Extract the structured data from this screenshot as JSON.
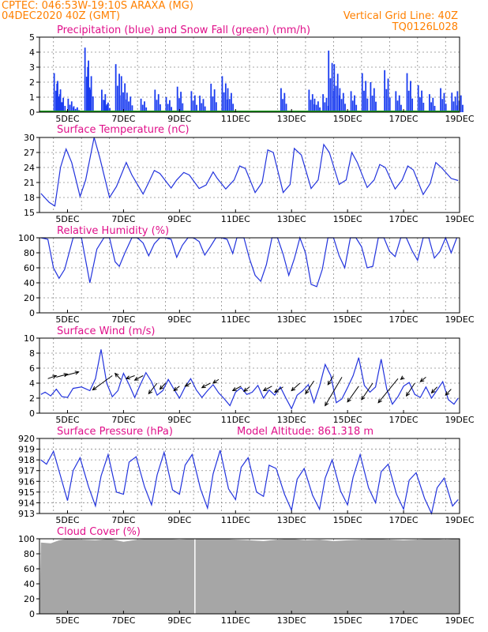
{
  "header": {
    "line1_left": "CPTEC:   046:53W-19:10S   ARAXA (MG)",
    "line2_left": "04DEC2020 40Z (GMT)",
    "line1_right": "Vertical Grid Line: 40Z",
    "line2_right": "TQ0126L028",
    "color": "#ff8000"
  },
  "colors": {
    "title": "#e0108a",
    "line": "#2233dd",
    "precip": "#1a3cf0",
    "snow": "#1a9a1a",
    "cloud": "#a6a6a6"
  },
  "x_ticks": [
    "5DEC",
    "7DEC",
    "9DEC",
    "11DEC",
    "13DEC",
    "15DEC",
    "17DEC",
    "19DEC"
  ],
  "chart_data": [
    {
      "type": "bar",
      "title": "Precipitation (blue) and Snow Fall (green) (mm/h)",
      "ylim": [
        0,
        5
      ],
      "yticks": [
        "0",
        "1",
        "2",
        "3",
        "4",
        "5"
      ],
      "snow_values": "all zero",
      "series": [
        {
          "name": "Precipitation",
          "x_day": [
            4.5,
            4.6,
            4.7,
            5.0,
            5.2,
            5.6,
            5.7,
            6.2,
            6.3,
            6.7,
            6.9,
            7.1,
            7.6,
            8.1,
            8.5,
            8.9,
            9.4,
            9.7,
            10.1,
            10.5,
            10.7,
            12.6,
            13.6,
            13.8,
            14.1,
            14.3,
            14.5,
            14.7,
            15.1,
            15.5,
            15.8,
            16.3,
            16.7,
            17.1,
            17.5,
            17.9,
            18.3,
            18.7,
            18.9
          ],
          "values": [
            2.6,
            1.9,
            1.2,
            0.9,
            0.4,
            4.3,
            3.0,
            1.5,
            0.8,
            3.2,
            2.4,
            1.3,
            0.9,
            1.5,
            1.0,
            1.7,
            1.4,
            1.1,
            1.9,
            2.4,
            1.6,
            1.6,
            1.5,
            0.9,
            1.2,
            4.1,
            3.2,
            1.6,
            1.4,
            2.6,
            2.0,
            2.8,
            1.4,
            2.6,
            1.8,
            1.2,
            1.6,
            1.3,
            1.4
          ]
        }
      ]
    },
    {
      "type": "line",
      "title": "Surface Temperature (nC)",
      "ylim": [
        15,
        30
      ],
      "yticks": [
        "15",
        "18",
        "21",
        "24",
        "27",
        "30"
      ],
      "series": [
        {
          "x_day": [
            4.05,
            4.35,
            4.55,
            4.75,
            4.95,
            5.15,
            5.45,
            5.65,
            5.95,
            6.15,
            6.5,
            6.75,
            7.1,
            7.3,
            7.7,
            7.9,
            8.1,
            8.3,
            8.7,
            8.9,
            9.15,
            9.35,
            9.7,
            9.95,
            10.2,
            10.35,
            10.65,
            10.95,
            11.15,
            11.35,
            11.7,
            11.95,
            12.15,
            12.35,
            12.7,
            12.95,
            13.1,
            13.35,
            13.7,
            13.95,
            14.15,
            14.35,
            14.7,
            14.95,
            15.15,
            15.35,
            15.7,
            15.95,
            16.15,
            16.35,
            16.7,
            16.95,
            17.15,
            17.35,
            17.7,
            17.95,
            18.15,
            18.35,
            18.7,
            18.95
          ],
          "y": [
            18.8,
            17.0,
            16.3,
            24.0,
            27.7,
            25.0,
            18.2,
            21.5,
            30.0,
            26.0,
            18.0,
            20.2,
            25.0,
            22.5,
            18.7,
            21.0,
            23.4,
            22.8,
            19.9,
            21.5,
            23.0,
            22.5,
            19.8,
            20.5,
            23.1,
            21.8,
            19.7,
            21.5,
            24.3,
            23.8,
            19.0,
            21.0,
            27.5,
            27.0,
            19.0,
            20.6,
            27.8,
            26.5,
            19.8,
            21.5,
            28.6,
            27.0,
            20.6,
            21.5,
            27.0,
            25.0,
            20.0,
            21.5,
            24.6,
            24.0,
            19.7,
            21.5,
            24.3,
            23.5,
            18.6,
            20.8,
            25.0,
            24.0,
            21.8,
            21.4
          ]
        }
      ]
    },
    {
      "type": "line",
      "title": "Relative Humidity (%)",
      "ylim": [
        0,
        100
      ],
      "yticks": [
        "0",
        "20",
        "40",
        "60",
        "80",
        "100"
      ],
      "series": [
        {
          "x_day": [
            4.05,
            4.3,
            4.5,
            4.7,
            4.9,
            5.2,
            5.5,
            5.6,
            5.8,
            6.05,
            6.3,
            6.5,
            6.7,
            6.85,
            7.05,
            7.3,
            7.5,
            7.7,
            7.9,
            8.1,
            8.3,
            8.5,
            8.7,
            8.9,
            9.1,
            9.3,
            9.5,
            9.7,
            9.9,
            10.1,
            10.3,
            10.5,
            10.7,
            10.9,
            11.05,
            11.3,
            11.5,
            11.7,
            11.9,
            12.1,
            12.3,
            12.5,
            12.7,
            12.9,
            13.1,
            13.3,
            13.5,
            13.7,
            13.9,
            14.1,
            14.3,
            14.5,
            14.7,
            14.9,
            15.1,
            15.3,
            15.5,
            15.7,
            15.9,
            16.1,
            16.3,
            16.5,
            16.7,
            16.9,
            17.1,
            17.3,
            17.5,
            17.7,
            17.9,
            18.1,
            18.3,
            18.5,
            18.7,
            18.9
          ],
          "y": [
            100,
            98,
            60,
            46,
            58,
            100,
            100,
            80,
            40,
            85,
            100,
            100,
            68,
            62,
            80,
            100,
            100,
            93,
            76,
            92,
            100,
            100,
            98,
            74,
            90,
            100,
            100,
            95,
            77,
            88,
            100,
            100,
            98,
            79,
            100,
            100,
            72,
            50,
            42,
            64,
            100,
            100,
            78,
            50,
            72,
            100,
            80,
            38,
            35,
            58,
            100,
            100,
            76,
            60,
            100,
            100,
            88,
            60,
            62,
            100,
            100,
            82,
            75,
            100,
            100,
            83,
            70,
            100,
            100,
            73,
            82,
            100,
            80,
            100
          ]
        }
      ]
    },
    {
      "type": "line",
      "title": "Surface Wind (m/s)",
      "ylim": [
        0,
        10
      ],
      "yticks": [
        "0",
        "2",
        "4",
        "6",
        "8",
        "10"
      ],
      "vectors": "wind direction arrows",
      "series": [
        {
          "x_day": [
            4.05,
            4.2,
            4.4,
            4.6,
            4.8,
            5.0,
            5.2,
            5.5,
            5.8,
            6.0,
            6.2,
            6.4,
            6.6,
            6.8,
            7.0,
            7.2,
            7.4,
            7.6,
            7.8,
            8.0,
            8.2,
            8.4,
            8.6,
            8.8,
            9.0,
            9.2,
            9.4,
            9.6,
            9.8,
            10.0,
            10.2,
            10.4,
            10.6,
            10.8,
            11.0,
            11.2,
            11.4,
            11.6,
            11.8,
            12.0,
            12.2,
            12.4,
            12.6,
            12.8,
            13.0,
            13.2,
            13.4,
            13.6,
            13.8,
            14.0,
            14.2,
            14.4,
            14.6,
            14.8,
            15.0,
            15.2,
            15.4,
            15.6,
            15.8,
            16.0,
            16.2,
            16.4,
            16.6,
            16.8,
            17.0,
            17.2,
            17.4,
            17.6,
            17.8,
            18.0,
            18.2,
            18.4,
            18.6,
            18.8,
            18.95
          ],
          "y": [
            2.5,
            2.8,
            2.3,
            3.2,
            2.2,
            2.1,
            3.3,
            3.5,
            3.0,
            4.6,
            8.5,
            4.0,
            2.2,
            3.0,
            5.3,
            3.8,
            2.1,
            3.8,
            5.4,
            4.2,
            2.4,
            3.0,
            4.5,
            3.2,
            2.0,
            3.5,
            4.6,
            3.1,
            2.1,
            3.0,
            3.8,
            2.7,
            1.9,
            1.0,
            2.8,
            3.4,
            2.5,
            2.8,
            3.7,
            2.0,
            3.1,
            2.4,
            3.5,
            2.0,
            0.6,
            2.4,
            3.0,
            3.8,
            1.4,
            3.6,
            6.5,
            5.0,
            1.4,
            1.9,
            3.4,
            5.0,
            7.4,
            3.7,
            2.8,
            3.5,
            7.2,
            3.2,
            1.2,
            2.2,
            3.6,
            4.1,
            2.5,
            2.1,
            3.5,
            2.0,
            3.1,
            4.2,
            1.8,
            1.2,
            2.0
          ]
        }
      ]
    },
    {
      "type": "line",
      "title": "Surface Pressure (hPa)",
      "annotation": "Model Altitude: 861.318 m",
      "ylim": [
        913,
        920
      ],
      "yticks": [
        "913",
        "914",
        "915",
        "916",
        "917",
        "918",
        "919",
        "920"
      ],
      "series": [
        {
          "x_day": [
            4.05,
            4.25,
            4.5,
            4.75,
            5.0,
            5.2,
            5.45,
            5.75,
            6.0,
            6.2,
            6.45,
            6.75,
            7.0,
            7.2,
            7.45,
            7.75,
            8.0,
            8.2,
            8.45,
            8.75,
            9.0,
            9.2,
            9.45,
            9.75,
            10.0,
            10.2,
            10.45,
            10.75,
            11.0,
            11.2,
            11.45,
            11.75,
            12.0,
            12.2,
            12.45,
            12.75,
            13.0,
            13.2,
            13.45,
            13.75,
            14.0,
            14.2,
            14.45,
            14.75,
            15.0,
            15.2,
            15.45,
            15.75,
            16.0,
            16.2,
            16.45,
            16.75,
            17.0,
            17.2,
            17.45,
            17.75,
            18.0,
            18.2,
            18.45,
            18.75,
            18.95
          ],
          "y": [
            918.0,
            917.6,
            918.8,
            916.5,
            914.2,
            917.0,
            918.2,
            915.5,
            913.7,
            916.5,
            918.5,
            915.0,
            914.8,
            917.8,
            918.3,
            915.5,
            913.8,
            916.6,
            918.7,
            915.2,
            914.8,
            917.5,
            918.5,
            915.3,
            913.5,
            916.7,
            918.9,
            915.3,
            914.3,
            917.3,
            918.2,
            915.0,
            914.6,
            917.5,
            917.2,
            914.8,
            913.3,
            916.2,
            917.2,
            914.7,
            913.4,
            916.3,
            918.0,
            915.1,
            913.8,
            916.4,
            918.5,
            915.4,
            914.0,
            916.9,
            917.6,
            914.8,
            913.4,
            916.1,
            916.8,
            914.4,
            913.0,
            915.4,
            916.3,
            913.7,
            914.3
          ]
        }
      ]
    },
    {
      "type": "bar",
      "title": "Cloud Cover (%)",
      "ylim": [
        0,
        100
      ],
      "yticks": [
        "0",
        "20",
        "40",
        "60",
        "80",
        "100"
      ],
      "description_values": "near 100 throughout",
      "series": [
        {
          "name": "Cloud Cover",
          "x_day": [
            4.05,
            4.4,
            4.7,
            5.0,
            5.5,
            6.0,
            6.5,
            7.0,
            7.5,
            8.0,
            8.5,
            9.0,
            9.5,
            10.0,
            10.5,
            11.0,
            11.5,
            12.0,
            12.5,
            13.0,
            13.5,
            14.0,
            14.5,
            15.0,
            15.5,
            16.0,
            16.5,
            17.0,
            17.5,
            18.0,
            18.5,
            18.95
          ],
          "values": [
            95,
            94,
            98,
            100,
            99,
            98,
            100,
            96,
            99,
            100,
            100,
            99,
            100,
            100,
            100,
            99,
            98,
            97,
            99,
            100,
            98,
            99,
            97,
            98,
            99,
            100,
            99,
            98,
            99,
            100,
            99,
            100
          ]
        }
      ]
    }
  ]
}
